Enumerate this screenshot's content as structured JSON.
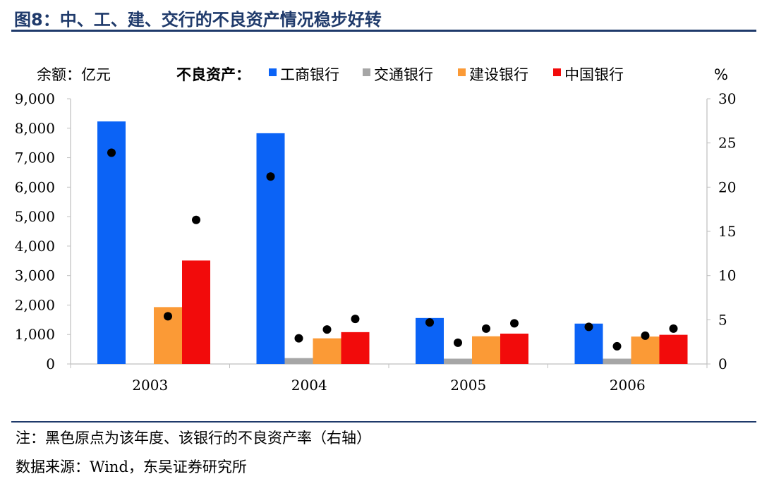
{
  "header": {
    "title": "图8：中、工、建、交行的不良资产情况稳步好转"
  },
  "footer": {
    "note": "注：黑色原点为该年度、该银行的不良资产率（右轴）",
    "source": "数据来源：Wind，东吴证券研究所"
  },
  "chart_data": {
    "type": "bar",
    "left_axis_unit": "余额：亿元",
    "right_axis_unit": "%",
    "legend_title": "不良资产：",
    "categories": [
      "2003",
      "2004",
      "2005",
      "2006"
    ],
    "series": [
      {
        "name": "工商银行",
        "color": "#0b63f6",
        "values": [
          8230,
          7830,
          1560,
          1370
        ],
        "rates": [
          23.9,
          21.2,
          4.7,
          4.2
        ]
      },
      {
        "name": "交通银行",
        "color": "#a6a6a6",
        "values": [
          0,
          200,
          180,
          180
        ],
        "rates": [
          null,
          2.9,
          2.4,
          2.0
        ]
      },
      {
        "name": "建设银行",
        "color": "#fb9a36",
        "values": [
          1930,
          870,
          940,
          930
        ],
        "rates": [
          5.4,
          3.9,
          4.0,
          3.2
        ]
      },
      {
        "name": "中国银行",
        "color": "#f20b0b",
        "values": [
          3510,
          1080,
          1030,
          990
        ],
        "rates": [
          16.3,
          5.1,
          4.6,
          4.0
        ]
      }
    ],
    "ylim": [
      0,
      9000
    ],
    "yticks": [
      "0",
      "1,000",
      "2,000",
      "3,000",
      "4,000",
      "5,000",
      "6,000",
      "7,000",
      "8,000",
      "9,000"
    ],
    "y2lim": [
      0,
      30
    ],
    "y2ticks": [
      "0",
      "5",
      "10",
      "15",
      "20",
      "25",
      "30"
    ],
    "rate_marker_color": "#000000",
    "grid": false,
    "legend_position": "top"
  }
}
